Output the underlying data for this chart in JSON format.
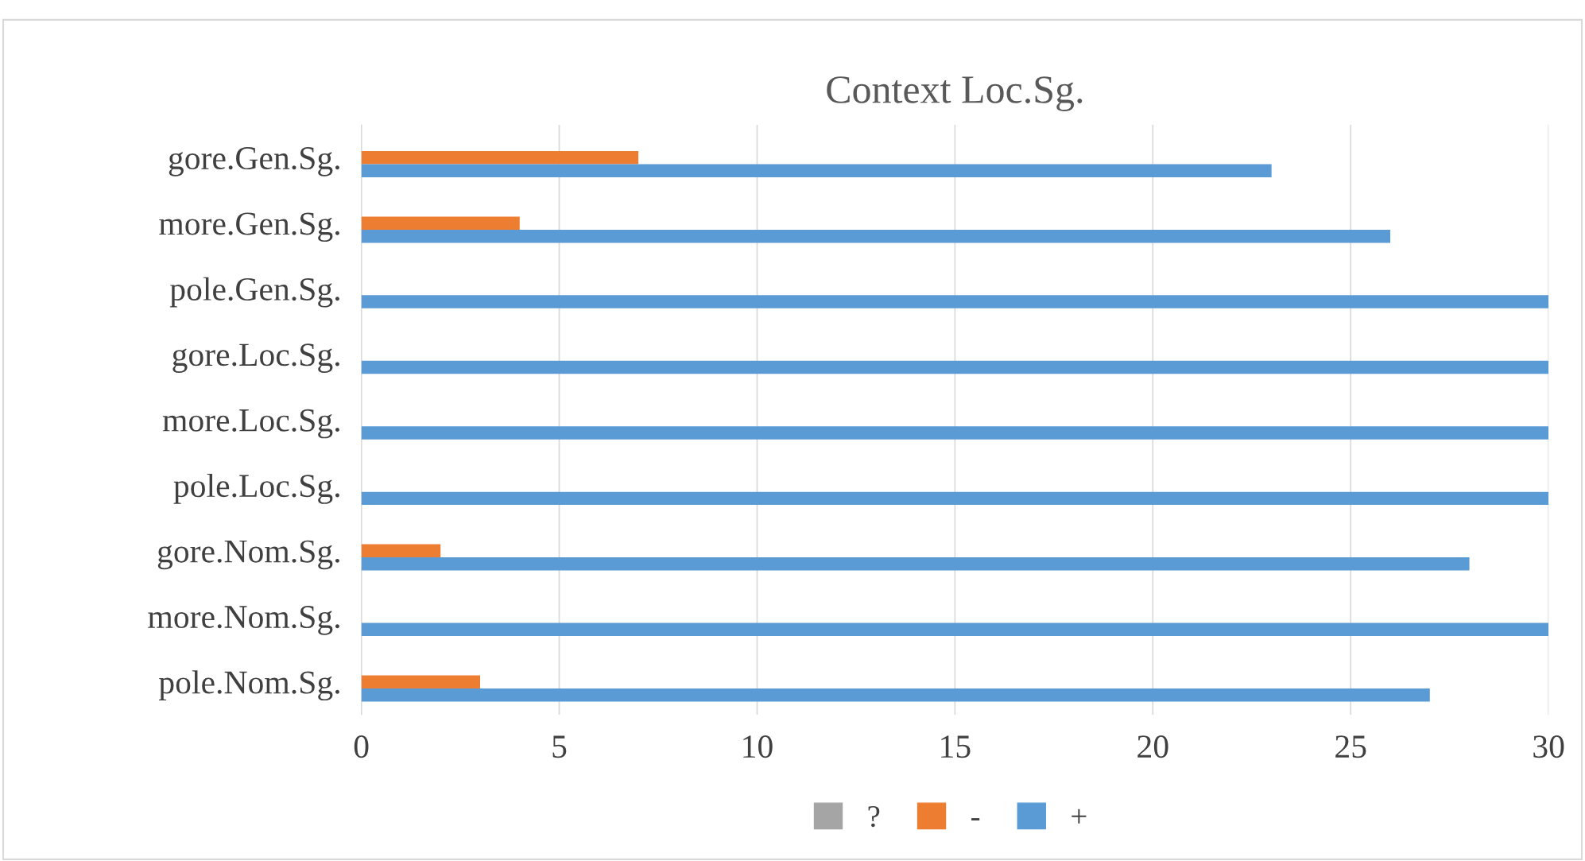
{
  "chart_data": {
    "type": "bar",
    "orientation": "horizontal",
    "title": "Context Loc.Sg.",
    "categories": [
      "gore.Gen.Sg.",
      "more.Gen.Sg.",
      "pole.Gen.Sg.",
      "gore.Loc.Sg.",
      "more.Loc.Sg.",
      "pole.Loc.Sg.",
      "gore.Nom.Sg.",
      "more.Nom.Sg.",
      "pole.Nom.Sg."
    ],
    "series": [
      {
        "name": "?",
        "color": "#a5a5a5",
        "values": [
          0,
          0,
          0,
          0,
          0,
          0,
          0,
          0,
          0
        ]
      },
      {
        "name": "-",
        "color": "#ed7d31",
        "values": [
          7,
          4,
          0,
          0,
          0,
          0,
          2,
          0,
          3
        ]
      },
      {
        "name": "+",
        "color": "#5b9bd5",
        "values": [
          23,
          26,
          30,
          30,
          30,
          30,
          28,
          30,
          27
        ]
      }
    ],
    "xlim": [
      0,
      30
    ],
    "xticks": [
      0,
      5,
      10,
      15,
      20,
      25,
      30
    ],
    "grid": "x",
    "legend": "bottom"
  }
}
